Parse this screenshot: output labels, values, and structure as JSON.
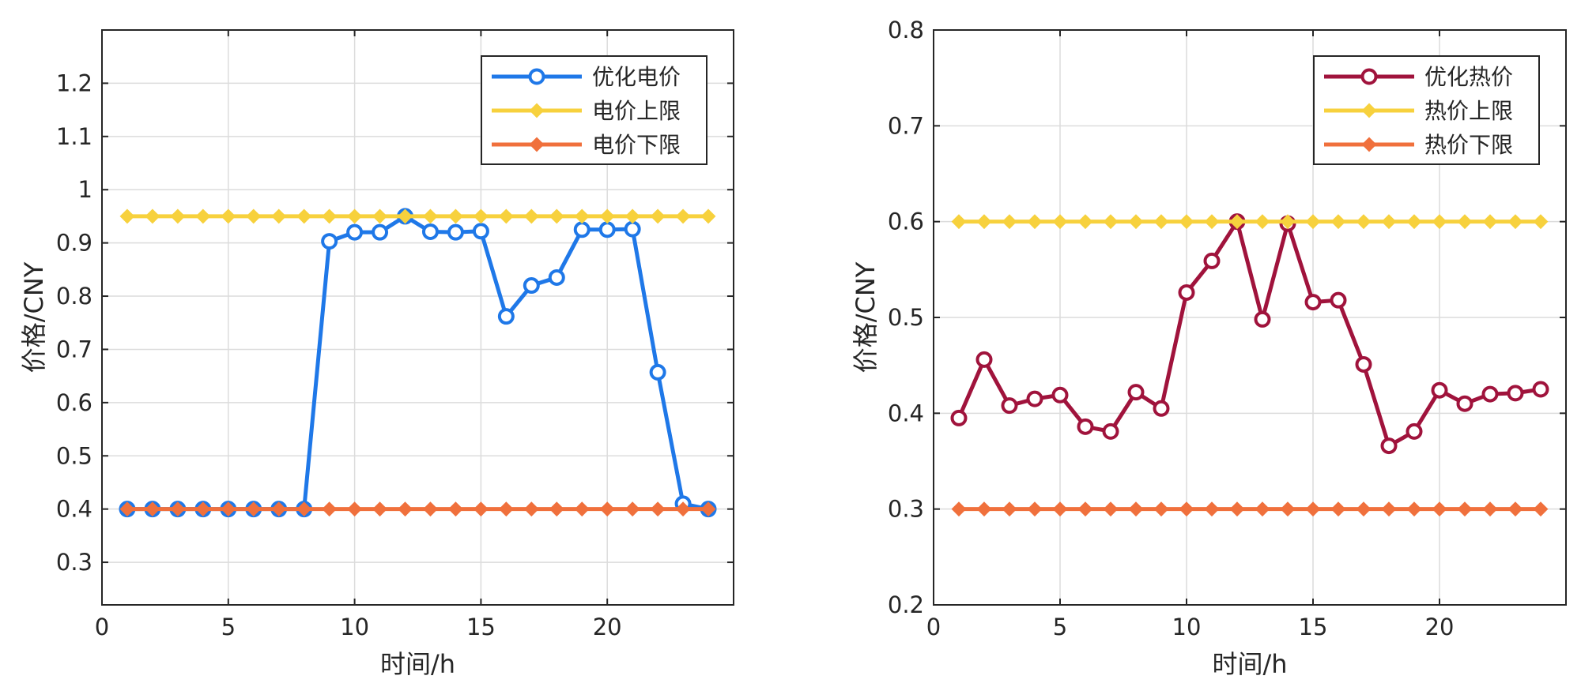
{
  "chart_data": [
    {
      "type": "line",
      "xlabel": "时间/h",
      "ylabel": "价格/CNY",
      "xlim": [
        0,
        25
      ],
      "ylim": [
        0.22,
        1.3
      ],
      "xticks": [
        0,
        5,
        10,
        15,
        20
      ],
      "yticks": [
        0.3,
        0.4,
        0.5,
        0.6,
        0.7,
        0.8,
        0.9,
        1,
        1.1,
        1.2
      ],
      "grid": true,
      "legend_position": "top-right",
      "x": [
        1,
        2,
        3,
        4,
        5,
        6,
        7,
        8,
        9,
        10,
        11,
        12,
        13,
        14,
        15,
        16,
        17,
        18,
        19,
        20,
        21,
        22,
        23,
        24
      ],
      "series": [
        {
          "name": "优化电价",
          "color": "#1f78e8",
          "marker": "circle",
          "values": [
            0.4,
            0.4,
            0.4,
            0.4,
            0.4,
            0.4,
            0.4,
            0.4,
            0.903,
            0.92,
            0.92,
            0.95,
            0.921,
            0.92,
            0.922,
            0.762,
            0.82,
            0.835,
            0.925,
            0.925,
            0.926,
            0.657,
            0.41,
            0.4
          ]
        },
        {
          "name": "电价上限",
          "color": "#f7d13d",
          "marker": "diamond",
          "values": [
            0.95,
            0.95,
            0.95,
            0.95,
            0.95,
            0.95,
            0.95,
            0.95,
            0.95,
            0.95,
            0.95,
            0.95,
            0.95,
            0.95,
            0.95,
            0.95,
            0.95,
            0.95,
            0.95,
            0.95,
            0.95,
            0.95,
            0.95,
            0.95
          ]
        },
        {
          "name": "电价下限",
          "color": "#f0703c",
          "marker": "diamond",
          "values": [
            0.4,
            0.4,
            0.4,
            0.4,
            0.4,
            0.4,
            0.4,
            0.4,
            0.4,
            0.4,
            0.4,
            0.4,
            0.4,
            0.4,
            0.4,
            0.4,
            0.4,
            0.4,
            0.4,
            0.4,
            0.4,
            0.4,
            0.4,
            0.4
          ]
        }
      ]
    },
    {
      "type": "line",
      "xlabel": "时间/h",
      "ylabel": "价格/CNY",
      "xlim": [
        0,
        25
      ],
      "ylim": [
        0.2,
        0.8
      ],
      "xticks": [
        0,
        5,
        10,
        15,
        20
      ],
      "yticks": [
        0.2,
        0.3,
        0.4,
        0.5,
        0.6,
        0.7,
        0.8
      ],
      "grid": true,
      "legend_position": "top-right",
      "x": [
        1,
        2,
        3,
        4,
        5,
        6,
        7,
        8,
        9,
        10,
        11,
        12,
        13,
        14,
        15,
        16,
        17,
        18,
        19,
        20,
        21,
        22,
        23,
        24
      ],
      "series": [
        {
          "name": "优化热价",
          "color": "#a0133c",
          "marker": "circle",
          "values": [
            0.395,
            0.456,
            0.408,
            0.415,
            0.419,
            0.386,
            0.381,
            0.422,
            0.405,
            0.526,
            0.559,
            0.6,
            0.498,
            0.598,
            0.516,
            0.518,
            0.451,
            0.366,
            0.381,
            0.424,
            0.41,
            0.42,
            0.421,
            0.425
          ]
        },
        {
          "name": "热价上限",
          "color": "#f7d13d",
          "marker": "diamond",
          "values": [
            0.6,
            0.6,
            0.6,
            0.6,
            0.6,
            0.6,
            0.6,
            0.6,
            0.6,
            0.6,
            0.6,
            0.6,
            0.6,
            0.6,
            0.6,
            0.6,
            0.6,
            0.6,
            0.6,
            0.6,
            0.6,
            0.6,
            0.6,
            0.6
          ]
        },
        {
          "name": "热价下限",
          "color": "#f0703c",
          "marker": "diamond",
          "values": [
            0.3,
            0.3,
            0.3,
            0.3,
            0.3,
            0.3,
            0.3,
            0.3,
            0.3,
            0.3,
            0.3,
            0.3,
            0.3,
            0.3,
            0.3,
            0.3,
            0.3,
            0.3,
            0.3,
            0.3,
            0.3,
            0.3,
            0.3,
            0.3
          ]
        }
      ]
    }
  ]
}
